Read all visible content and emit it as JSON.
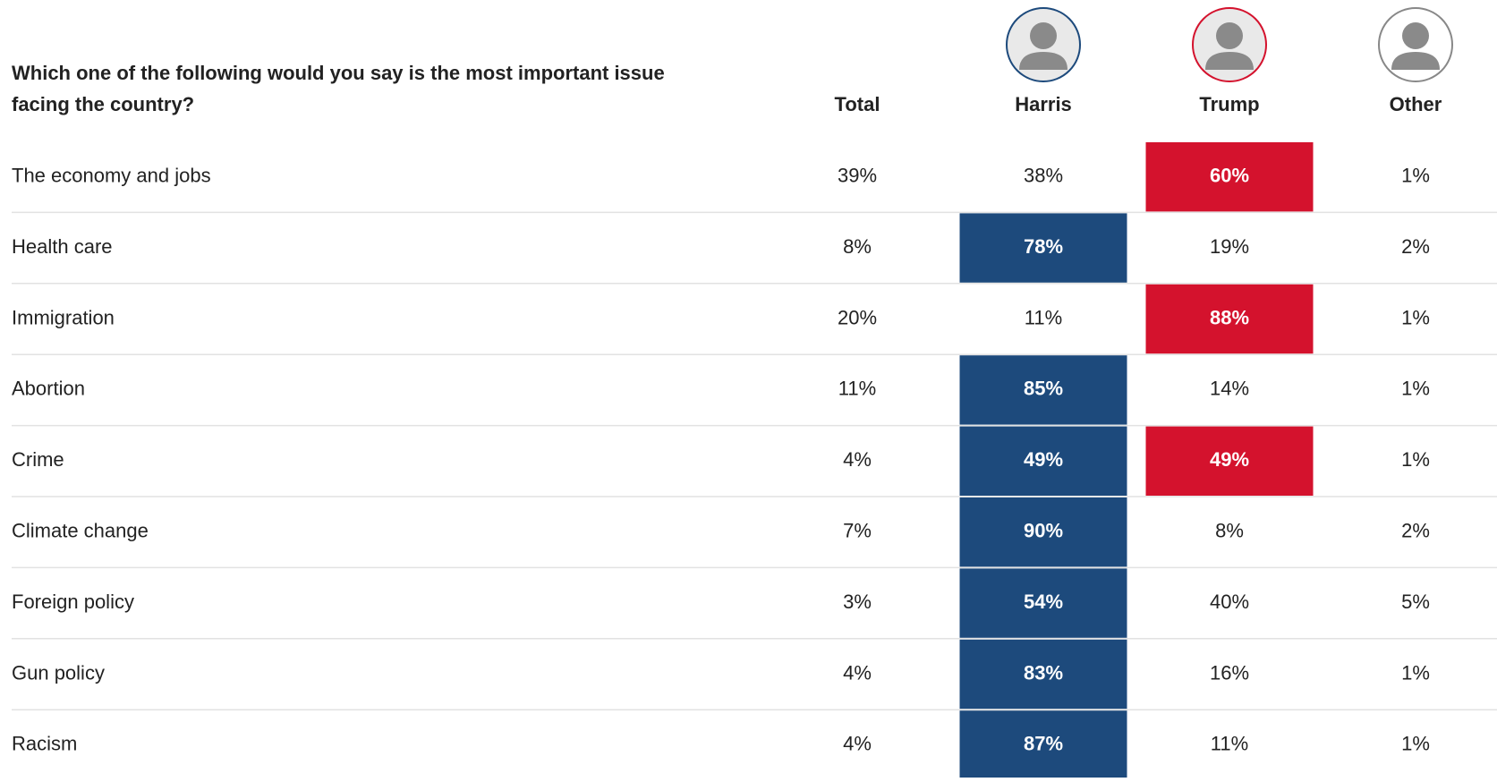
{
  "header": {
    "question": [
      "Which one of the following would you say is the most important issue",
      "facing the country?"
    ]
  },
  "columns": [
    {
      "label": "Total"
    },
    {
      "label": "Harris",
      "color": "#1d4a7c"
    },
    {
      "label": "Trump",
      "color": "#d4122d"
    },
    {
      "label": "Other"
    }
  ],
  "rows": [
    {
      "label": "The economy and jobs",
      "cells": [
        "39%",
        "38%",
        "60%",
        "1%"
      ],
      "highlight": [
        2
      ]
    },
    {
      "label": "Health care",
      "cells": [
        "8%",
        "78%",
        "19%",
        "2%"
      ],
      "highlight": [
        1
      ]
    },
    {
      "label": "Immigration",
      "cells": [
        "20%",
        "11%",
        "88%",
        "1%"
      ],
      "highlight": [
        2
      ]
    },
    {
      "label": "Abortion",
      "cells": [
        "11%",
        "85%",
        "14%",
        "1%"
      ],
      "highlight": [
        1
      ]
    },
    {
      "label": "Crime",
      "cells": [
        "4%",
        "49%",
        "49%",
        "1%"
      ],
      "highlight": [
        1,
        2
      ]
    },
    {
      "label": "Climate change",
      "cells": [
        "7%",
        "90%",
        "8%",
        "2%"
      ],
      "highlight": [
        1
      ]
    },
    {
      "label": "Foreign policy",
      "cells": [
        "3%",
        "54%",
        "40%",
        "5%"
      ],
      "highlight": [
        1
      ]
    },
    {
      "label": "Gun policy",
      "cells": [
        "4%",
        "83%",
        "16%",
        "1%"
      ],
      "highlight": [
        1
      ]
    },
    {
      "label": "Racism",
      "cells": [
        "4%",
        "87%",
        "11%",
        "1%"
      ],
      "highlight": [
        1
      ]
    }
  ]
}
